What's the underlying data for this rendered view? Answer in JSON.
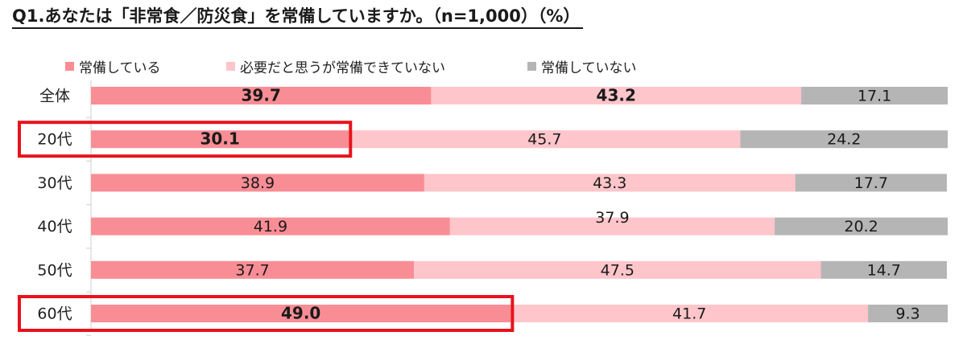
{
  "title": "Q1.あなたは「非常食／防災食」を常備していますか。（n=1,000）（%）",
  "legend": [
    {
      "label": "常備している",
      "color": "#f98d95"
    },
    {
      "label": "必要だと思うが常備できていない",
      "color": "#fec5ca"
    },
    {
      "label": "常備していない",
      "color": "#b5b5b5"
    }
  ],
  "chart_data": {
    "type": "bar",
    "orientation": "horizontal",
    "stacked": true,
    "categories": [
      "全体",
      "20代",
      "30代",
      "40代",
      "50代",
      "60代"
    ],
    "series": [
      {
        "name": "常備している",
        "color": "#f98d95",
        "values": [
          39.7,
          30.1,
          38.9,
          41.9,
          37.7,
          49.0
        ],
        "labels": [
          "39.7",
          "30.1",
          "38.9",
          "41.9",
          "37.7",
          "49.0"
        ]
      },
      {
        "name": "必要だと思うが常備できていない",
        "color": "#fec5ca",
        "values": [
          43.2,
          45.7,
          43.3,
          37.9,
          47.5,
          41.7
        ],
        "labels": [
          "43.2",
          "45.7",
          "43.3",
          "37.9",
          "47.5",
          "41.7"
        ]
      },
      {
        "name": "常備していない",
        "color": "#b5b5b5",
        "values": [
          17.1,
          24.2,
          17.7,
          20.2,
          14.7,
          9.3
        ],
        "labels": [
          "17.1",
          "24.2",
          "17.7",
          "20.2",
          "14.7",
          "9.3"
        ]
      }
    ],
    "bold_labels": [
      [
        "39.7",
        "43.2"
      ],
      [
        "30.1"
      ],
      [],
      [],
      [],
      [
        "49.0"
      ]
    ],
    "xlim": [
      0,
      100
    ],
    "highlighted_segments": [
      {
        "category": "20代",
        "series": "常備している"
      },
      {
        "category": "60代",
        "series": "常備している"
      }
    ],
    "highlight_color": "#e8121c",
    "grid": false,
    "legend_position": "top"
  }
}
